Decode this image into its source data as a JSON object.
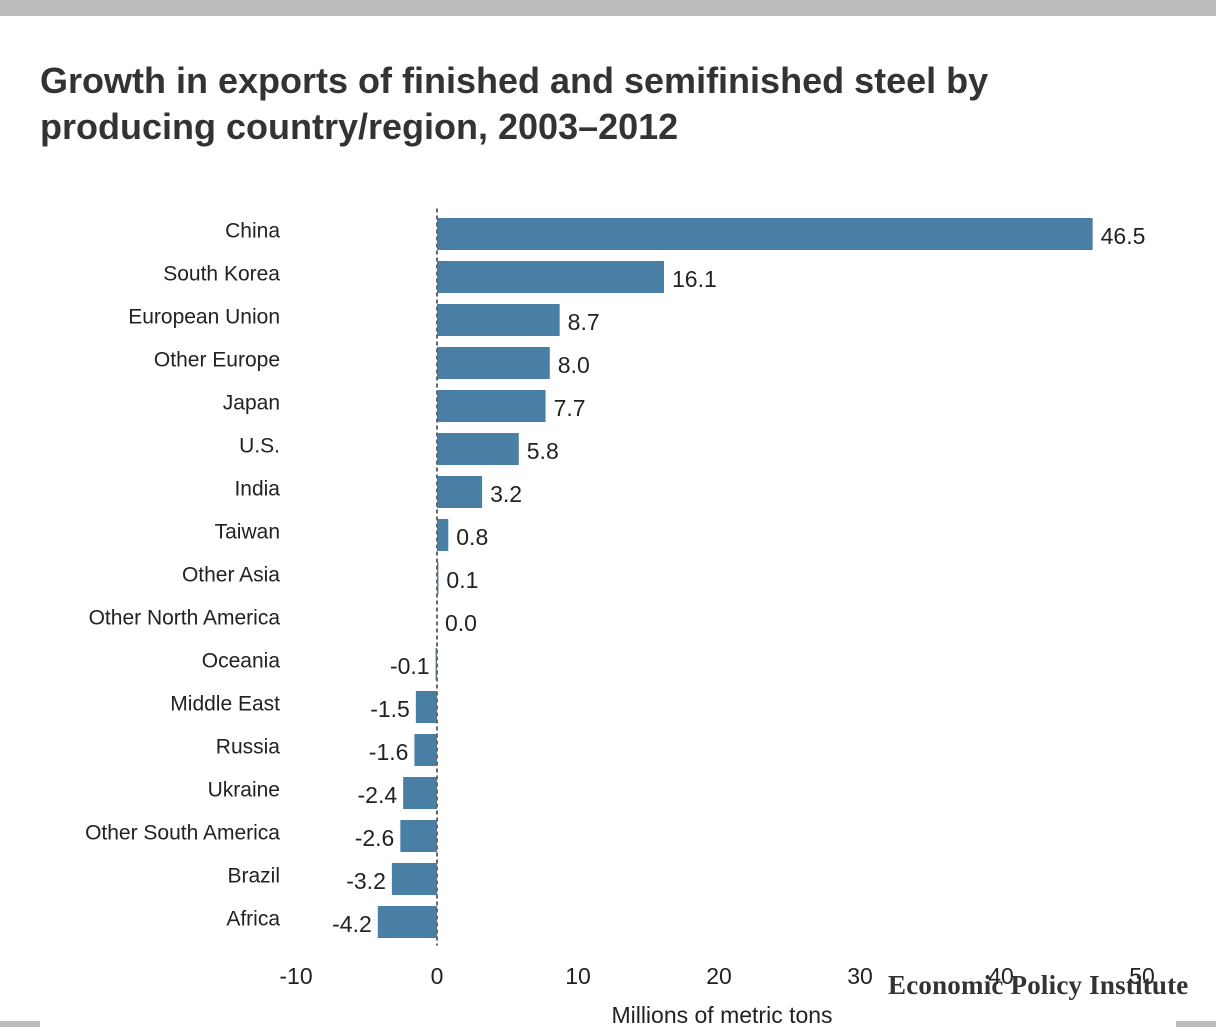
{
  "chart_data": {
    "type": "bar",
    "orientation": "horizontal",
    "title": "Growth in exports of finished and semifinished steel by producing country/region, 2003–2012",
    "xlabel": "Millions of metric tons",
    "ylabel": "",
    "categories": [
      "China",
      "South Korea",
      "European Union",
      "Other Europe",
      "Japan",
      "U.S.",
      "India",
      "Taiwan",
      "Other Asia",
      "Other North America",
      "Oceania",
      "Middle East",
      "Russia",
      "Ukraine",
      "Other South America",
      "Brazil",
      "Africa"
    ],
    "values": [
      46.5,
      16.1,
      8.7,
      8.0,
      7.7,
      5.8,
      3.2,
      0.8,
      0.1,
      0.0,
      -0.1,
      -1.5,
      -1.6,
      -2.4,
      -2.6,
      -3.2,
      -4.2
    ],
    "value_labels": [
      "46.5",
      "16.1",
      "8.7",
      "8.0",
      "7.7",
      "5.8",
      "3.2",
      "0.8",
      "0.1",
      "0.0",
      "-0.1",
      "-1.5",
      "-1.6",
      "-2.4",
      "-2.6",
      "-3.2",
      "-4.2"
    ],
    "xlim": [
      -10,
      50
    ],
    "xticks": [
      -10,
      0,
      10,
      20,
      30,
      40,
      50
    ],
    "xtick_labels": [
      "-10",
      "0",
      "10",
      "20",
      "30",
      "40",
      "50"
    ],
    "grid": false,
    "zero_line": "dashed",
    "colors": {
      "bar": "#4a7fa5",
      "zero_line": "#666666"
    }
  },
  "source": {
    "brand": "Economic Policy Institute"
  }
}
